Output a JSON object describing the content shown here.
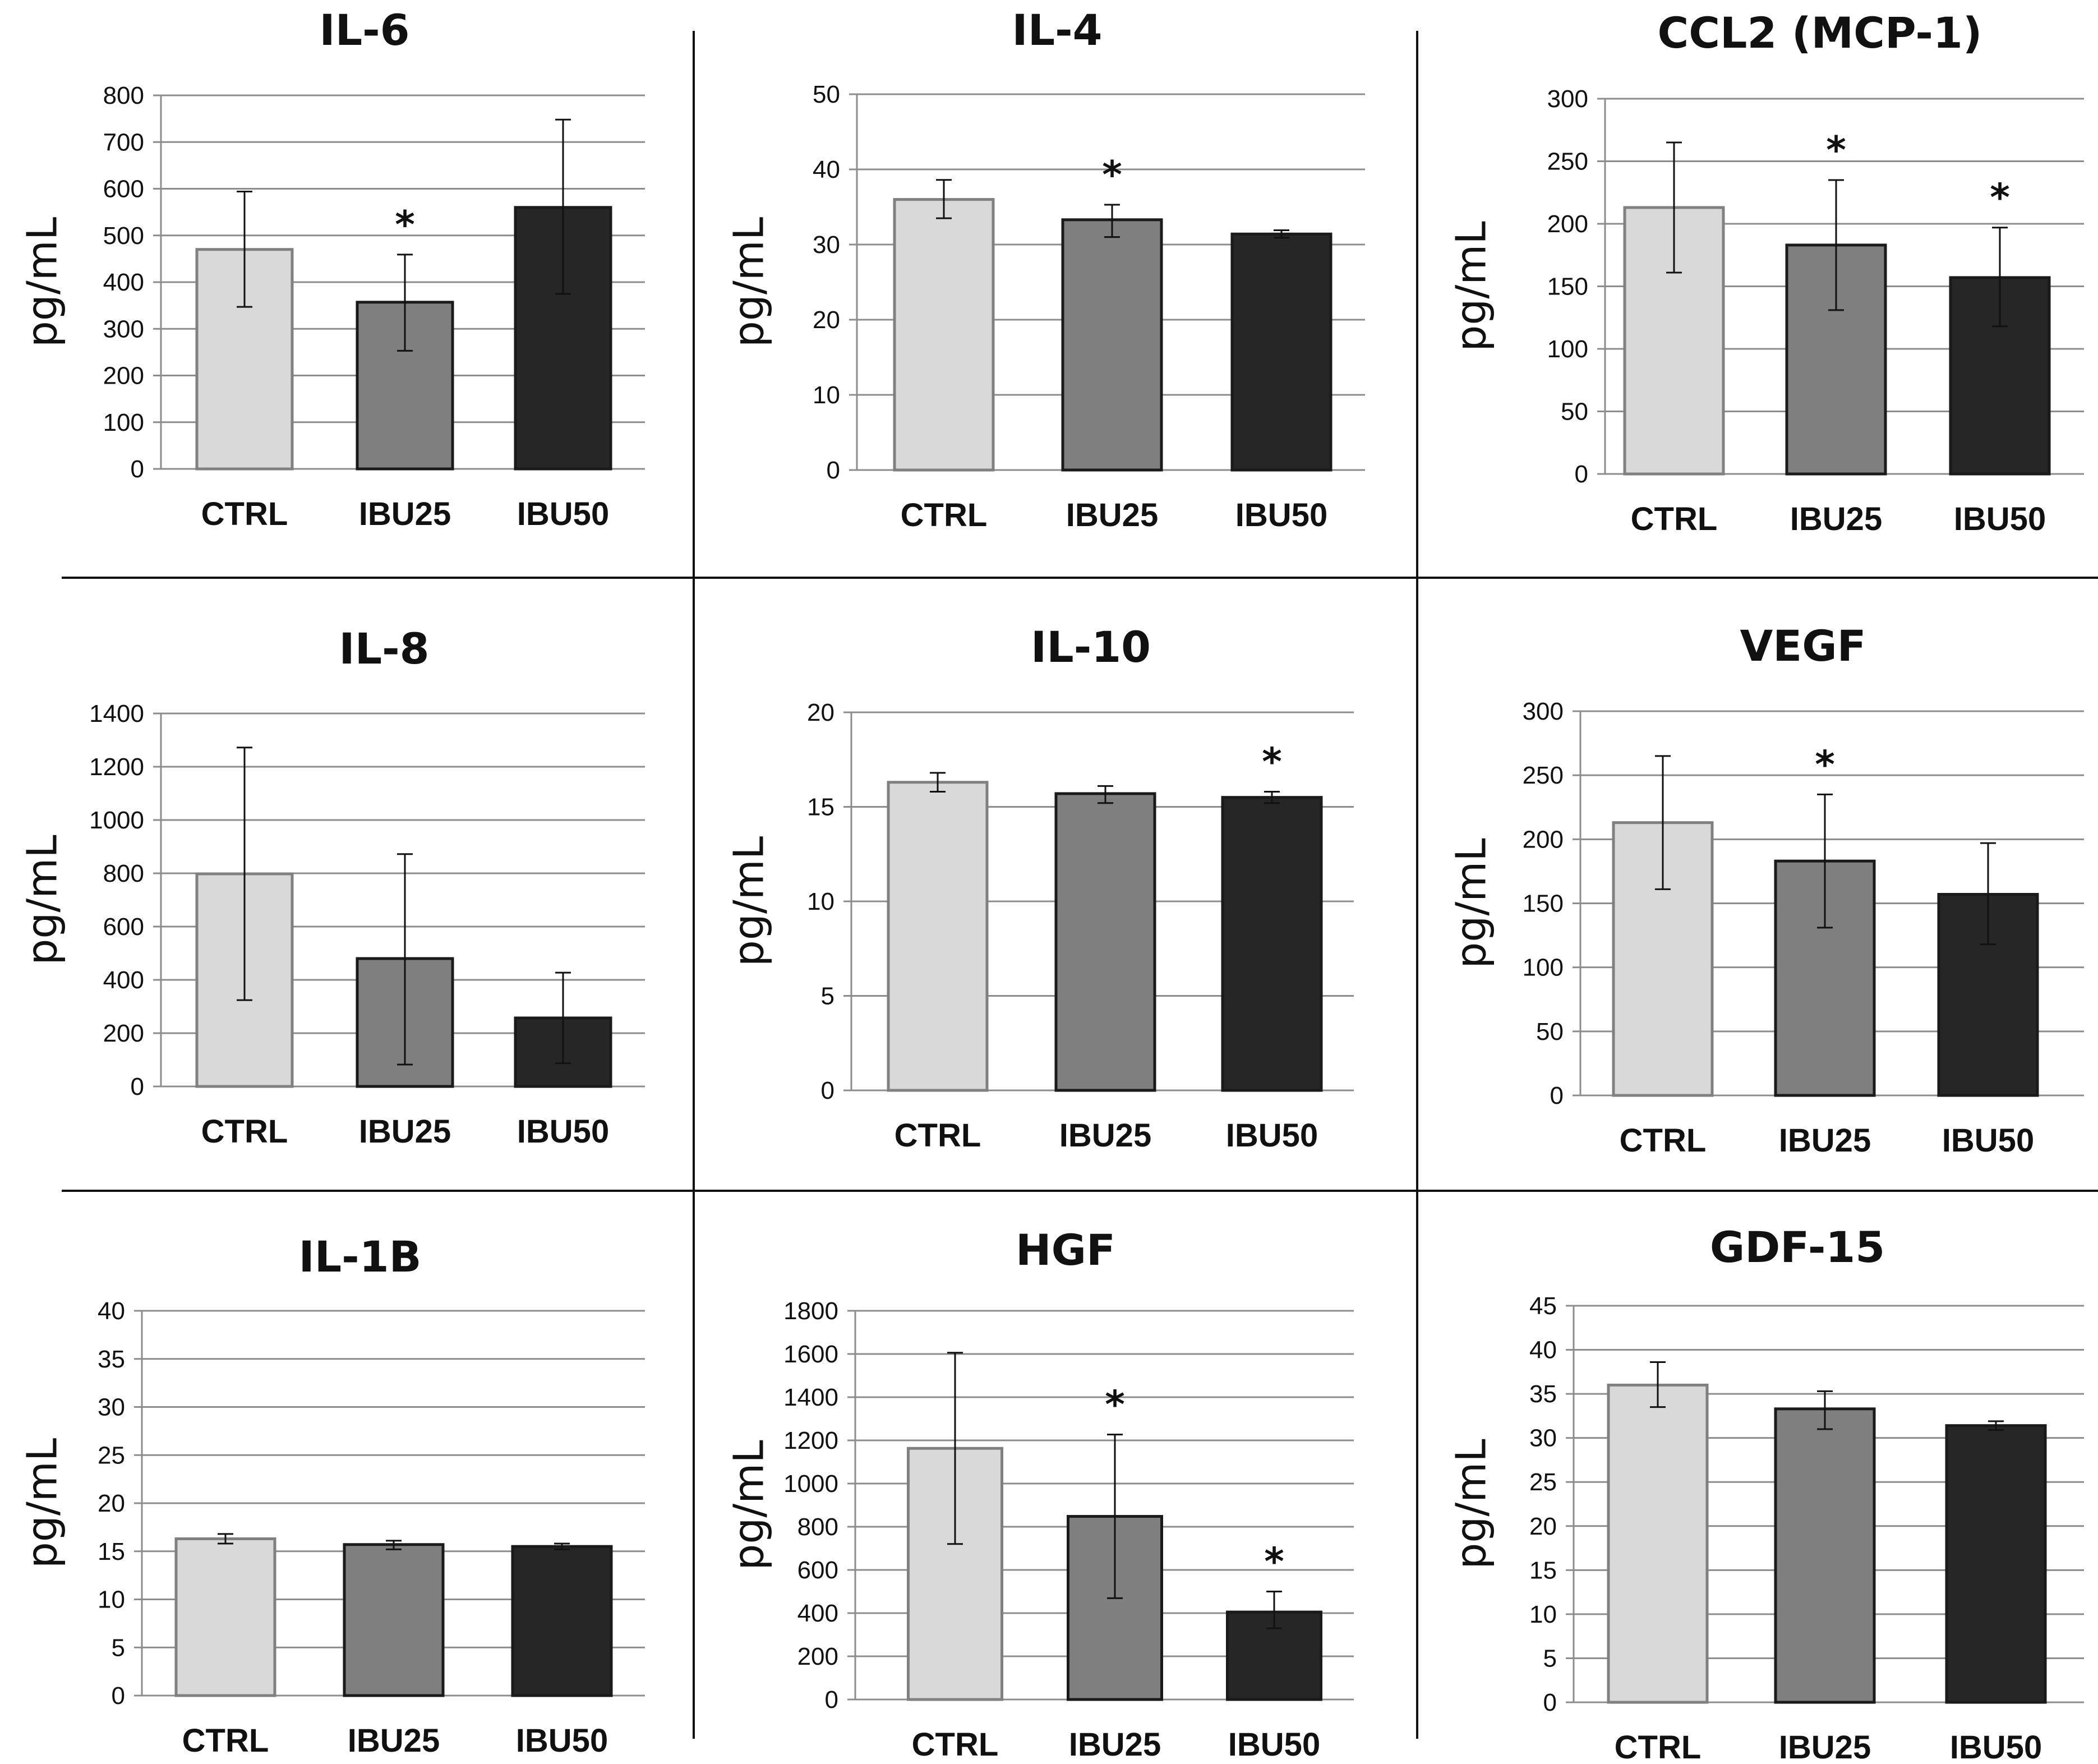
{
  "figure": {
    "style": {
      "bar_colors": {
        "CTRL": "#d9d9d9",
        "IBU25": "#7f7f7f",
        "IBU50": "#262626"
      },
      "bar_edges": {
        "CTRL": "#808080",
        "IBU25": "#1a1a1a",
        "IBU50": "#1a1a1a"
      },
      "gridline_color": "#8c8c8c"
    }
  },
  "chart_data": [
    {
      "type": "bar",
      "title": "IL-6",
      "ylabel": "pg/mL",
      "categories": [
        "CTRL",
        "IBU25",
        "IBU50"
      ],
      "values": [
        470,
        357,
        560
      ],
      "error_low": [
        347,
        253,
        375
      ],
      "error_high": [
        594,
        459,
        748
      ],
      "significant": [
        false,
        true,
        false
      ],
      "significance_marker": "*",
      "ylim": [
        0,
        800
      ],
      "yticks": [
        0,
        100,
        200,
        300,
        400,
        500,
        600,
        700,
        800
      ]
    },
    {
      "type": "bar",
      "title": "IL-4",
      "ylabel": "pg/mL",
      "categories": [
        "CTRL",
        "IBU25",
        "IBU50"
      ],
      "values": [
        36,
        33.3,
        31.4
      ],
      "error_low": [
        33.5,
        31,
        30.9
      ],
      "error_high": [
        38.6,
        35.3,
        31.9
      ],
      "significant": [
        false,
        true,
        false
      ],
      "significance_marker": "*",
      "ylim": [
        0,
        50
      ],
      "yticks": [
        0,
        10,
        20,
        30,
        40,
        50
      ]
    },
    {
      "type": "bar",
      "title": "CCL2 (MCP-1)",
      "ylabel": "pg/mL",
      "categories": [
        "CTRL",
        "IBU25",
        "IBU50"
      ],
      "values": [
        213,
        183,
        157
      ],
      "error_low": [
        161,
        131,
        118
      ],
      "error_high": [
        265,
        235,
        197
      ],
      "significant": [
        false,
        true,
        true
      ],
      "significance_marker": "*",
      "ylim": [
        0,
        300
      ],
      "yticks": [
        0,
        50,
        100,
        150,
        200,
        250,
        300
      ]
    },
    {
      "type": "bar",
      "title": "IL-8",
      "ylabel": "pg/mL",
      "categories": [
        "CTRL",
        "IBU25",
        "IBU50"
      ],
      "values": [
        798,
        480,
        257
      ],
      "error_low": [
        324,
        82,
        87
      ],
      "error_high": [
        1272,
        872,
        427
      ],
      "significant": [
        false,
        false,
        false
      ],
      "significance_marker": "*",
      "ylim": [
        0,
        1400
      ],
      "yticks": [
        0,
        200,
        400,
        600,
        800,
        1000,
        1200,
        1400
      ]
    },
    {
      "type": "bar",
      "title": "IL-10",
      "ylabel": "pg/mL",
      "categories": [
        "CTRL",
        "IBU25",
        "IBU50"
      ],
      "values": [
        16.3,
        15.7,
        15.5
      ],
      "error_low": [
        15.8,
        15.2,
        15.2
      ],
      "error_high": [
        16.8,
        16.1,
        15.8
      ],
      "significant": [
        false,
        false,
        true
      ],
      "significance_marker": "*",
      "ylim": [
        0,
        20
      ],
      "yticks": [
        0,
        5,
        10,
        15,
        20
      ]
    },
    {
      "type": "bar",
      "title": "VEGF",
      "ylabel": "pg/mL",
      "categories": [
        "CTRL",
        "IBU25",
        "IBU50"
      ],
      "values": [
        213,
        183,
        157
      ],
      "error_low": [
        161,
        131,
        118
      ],
      "error_high": [
        265,
        235,
        197
      ],
      "significant": [
        false,
        true,
        false
      ],
      "significance_marker": "*",
      "ylim": [
        0,
        300
      ],
      "yticks": [
        0,
        50,
        100,
        150,
        200,
        250,
        300
      ]
    },
    {
      "type": "bar",
      "title": "IL-1B",
      "ylabel": "pg/mL",
      "categories": [
        "CTRL",
        "IBU25",
        "IBU50"
      ],
      "values": [
        16.3,
        15.7,
        15.5
      ],
      "error_low": [
        15.8,
        15.2,
        15.2
      ],
      "error_high": [
        16.8,
        16.1,
        15.8
      ],
      "significant": [
        false,
        false,
        false
      ],
      "significance_marker": "*",
      "ylim": [
        0,
        40
      ],
      "yticks": [
        0,
        5,
        10,
        15,
        20,
        25,
        30,
        35,
        40
      ]
    },
    {
      "type": "bar",
      "title": "HGF",
      "ylabel": "pg/mL",
      "categories": [
        "CTRL",
        "IBU25",
        "IBU50"
      ],
      "values": [
        1163,
        848,
        405
      ],
      "error_low": [
        720,
        469,
        330
      ],
      "error_high": [
        1606,
        1227,
        500
      ],
      "significant": [
        false,
        true,
        true
      ],
      "significance_marker": "*",
      "ylim": [
        0,
        1800
      ],
      "yticks": [
        0,
        200,
        400,
        600,
        800,
        1000,
        1200,
        1400,
        1600,
        1800
      ]
    },
    {
      "type": "bar",
      "title": "GDF-15",
      "ylabel": "pg/mL",
      "categories": [
        "CTRL",
        "IBU25",
        "IBU50"
      ],
      "values": [
        36,
        33.3,
        31.4
      ],
      "error_low": [
        33.5,
        31,
        30.9
      ],
      "error_high": [
        38.6,
        35.3,
        31.9
      ],
      "significant": [
        false,
        false,
        false
      ],
      "significance_marker": "*",
      "ylim": [
        0,
        45
      ],
      "yticks": [
        0,
        5,
        10,
        15,
        20,
        25,
        30,
        35,
        40,
        45
      ]
    }
  ]
}
